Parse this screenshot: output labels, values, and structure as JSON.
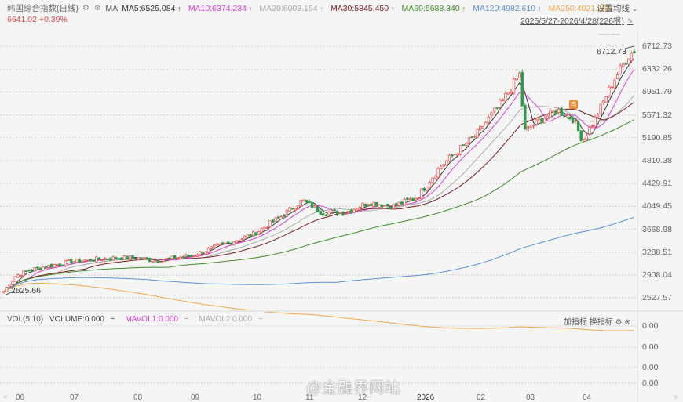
{
  "header": {
    "title": "韩国综合指数(日线)",
    "icons": [
      "gear-icon",
      "close-circle-icon"
    ],
    "ma_label": "MA",
    "ma_values": [
      {
        "label": "MA5:6525.084",
        "color": "#333333"
      },
      {
        "label": "MA10:6374.234",
        "color": "#d63fd6"
      },
      {
        "label": "MA20:6003.154",
        "color": "#aaaaaa"
      },
      {
        "label": "MA30:5845.450",
        "color": "#7a1f1f"
      },
      {
        "label": "MA60:5688.340",
        "color": "#3f8a2a"
      },
      {
        "label": "MA120:4982.610",
        "color": "#5b8fd6"
      },
      {
        "label": "MA250:4021.265",
        "color": "#f0a84a"
      }
    ],
    "arrow": "↑",
    "price": "6641.02",
    "change": "+0.39%",
    "settings_label": "设置均线",
    "settings_chevron": "⌄",
    "range_label": "2025/5/27-2026/4/28(226根)",
    "pin_icon": "📌"
  },
  "annotations": {
    "high_label": "6712.73",
    "low_label": "2625.66",
    "badge": "自"
  },
  "volume_panel": {
    "title": "VOL(5,10)",
    "volume": "VOLUME:0.000",
    "mavol1": "MAVOL1:0.000",
    "mavol2": "MAVOL2:0.000",
    "dash": "−",
    "add_indicator": "加指标",
    "change_indicator": "换指标",
    "axis": [
      "0.00",
      "0.00",
      "0.00",
      "0.00"
    ]
  },
  "watermark": "@金融界网站",
  "chart_data": {
    "type": "candlestick",
    "title": "韩国综合指数(日线)",
    "period": "2025/5/27-2026/4/28",
    "bars": 226,
    "last_price": 6641.02,
    "change_pct": 0.39,
    "period_high": 6712.73,
    "period_low": 2625.66,
    "y_ticks": [
      6712.73,
      6332.26,
      5951.79,
      5571.32,
      5190.85,
      4810.38,
      4429.91,
      4049.45,
      3668.98,
      3288.51,
      2908.04,
      2527.57
    ],
    "x_ticks": [
      "06",
      "07",
      "08",
      "09",
      "10",
      "11",
      "12",
      "2026",
      "02",
      "03",
      "04"
    ],
    "moving_averages": {
      "MA5": 6525.084,
      "MA10": 6374.234,
      "MA20": 6003.154,
      "MA30": 5845.45,
      "MA60": 5688.34,
      "MA120": 4982.61,
      "MA250": 4021.265
    },
    "approx_close_path": [
      {
        "month": "06",
        "close": 2900
      },
      {
        "month": "07",
        "close": 3150
      },
      {
        "month": "08",
        "close": 3200
      },
      {
        "month": "09",
        "close": 3250
      },
      {
        "month": "10",
        "close": 3600
      },
      {
        "month": "11",
        "close": 4100
      },
      {
        "month": "12",
        "close": 4000
      },
      {
        "month": "2026",
        "close": 4150
      },
      {
        "month": "02",
        "close": 5300
      },
      {
        "month": "03",
        "close": 5400
      },
      {
        "month": "04",
        "close": 6641
      }
    ],
    "volume": {
      "VOLUME": 0,
      "MAVOL1": 0,
      "MAVOL2": 0
    }
  }
}
